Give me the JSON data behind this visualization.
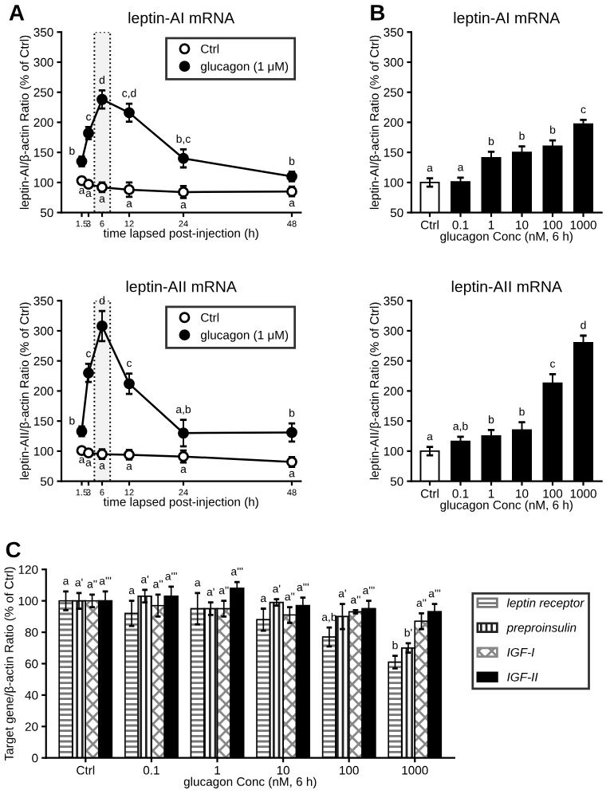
{
  "chart_data": [
    {
      "type": "line",
      "title": "leptin-AI mRNA",
      "annotations": [
        "A"
      ],
      "xlabel": "time lapsed post-injection (h)",
      "ylabel": "leptin-AI/β-actin Ratio (% of Ctrl)",
      "x": [
        1.5,
        3,
        6,
        12,
        24,
        48
      ],
      "xlim": [
        -3,
        50
      ],
      "xticks": [
        1.5,
        3,
        6,
        12,
        24,
        48
      ],
      "ylim": [
        50,
        350
      ],
      "yticks": [
        50,
        100,
        150,
        200,
        250,
        300,
        350
      ],
      "marker": "circle",
      "legend": "top right",
      "grid": false,
      "bands": [
        {
          "axis": "x",
          "from": 4.3,
          "to": 7.8,
          "color": "#f2f2f2"
        }
      ],
      "series": [
        {
          "name": "Ctrl",
          "color": "#ffffff",
          "values": [
            103,
            97,
            92,
            88,
            84,
            85
          ],
          "errors": [
            5,
            4,
            8,
            12,
            10,
            8
          ],
          "value_labels": [
            "a",
            "a",
            "a",
            "a",
            "a",
            "a"
          ]
        },
        {
          "name": "glucagon (1 μM)",
          "color": "#000000",
          "values": [
            135,
            182,
            238,
            216,
            140,
            110
          ],
          "errors": [
            8,
            10,
            15,
            15,
            15,
            8
          ],
          "value_labels": [
            "b",
            "c",
            "d",
            "c,d",
            "b,c",
            "b"
          ]
        }
      ]
    },
    {
      "type": "bar",
      "title": "leptin-AI mRNA",
      "annotations": [
        "B"
      ],
      "xlabel": "glucagon Conc (nM, 6 h)",
      "ylabel": "leptin-AI/β-actin Ratio (% of Ctrl)",
      "categories": [
        "Ctrl",
        "0.1",
        "1",
        "10",
        "100",
        "1000"
      ],
      "ylim": [
        50,
        350
      ],
      "yticks": [
        50,
        100,
        150,
        200,
        250,
        300,
        350
      ],
      "grid": false,
      "values": [
        100,
        101,
        141,
        150,
        160,
        197
      ],
      "errors": [
        7,
        7,
        10,
        10,
        10,
        7
      ],
      "colors": [
        "#ffffff",
        "#000000",
        "#000000",
        "#000000",
        "#000000",
        "#000000"
      ],
      "value_labels": [
        "a",
        "a",
        "b",
        "b",
        "b",
        "c"
      ]
    },
    {
      "type": "line",
      "title": "leptin-AII mRNA",
      "xlabel": "time lapsed post-injection (h)",
      "ylabel": "leptin-AII/β-actin Ratio (% of Ctrl)",
      "x": [
        1.5,
        3,
        6,
        12,
        24,
        48
      ],
      "xlim": [
        -3,
        50
      ],
      "xticks": [
        1.5,
        3,
        6,
        12,
        24,
        48
      ],
      "ylim": [
        50,
        350
      ],
      "yticks": [
        50,
        100,
        150,
        200,
        250,
        300,
        350
      ],
      "marker": "circle",
      "legend": "top right",
      "grid": false,
      "bands": [
        {
          "axis": "x",
          "from": 4.3,
          "to": 7.8,
          "color": "#f2f2f2"
        }
      ],
      "series": [
        {
          "name": "Ctrl",
          "color": "#ffffff",
          "values": [
            101,
            97,
            95,
            94,
            91,
            82
          ],
          "errors": [
            4,
            5,
            8,
            8,
            10,
            8
          ],
          "value_labels": [
            "a",
            "a",
            "a",
            "a",
            "a",
            "a"
          ]
        },
        {
          "name": "glucagon (1 μM)",
          "color": "#000000",
          "values": [
            133,
            230,
            308,
            212,
            130,
            131
          ],
          "errors": [
            8,
            15,
            25,
            17,
            22,
            15
          ],
          "value_labels": [
            "b",
            "c",
            "d",
            "c",
            "a,b",
            "b"
          ]
        }
      ]
    },
    {
      "type": "bar",
      "title": "leptin-AII mRNA",
      "xlabel": "glucagon Conc (nM, 6 h)",
      "ylabel": "leptin-AII/β-actin Ratio (% of Ctrl)",
      "categories": [
        "Ctrl",
        "0.1",
        "1",
        "10",
        "100",
        "1000"
      ],
      "ylim": [
        50,
        350
      ],
      "yticks": [
        50,
        100,
        150,
        200,
        250,
        300,
        350
      ],
      "grid": false,
      "values": [
        100,
        116,
        125,
        135,
        213,
        280
      ],
      "errors": [
        7,
        8,
        10,
        13,
        15,
        12
      ],
      "colors": [
        "#ffffff",
        "#000000",
        "#000000",
        "#000000",
        "#000000",
        "#000000"
      ],
      "value_labels": [
        "a",
        "a,b",
        "b",
        "b",
        "c",
        "d"
      ]
    },
    {
      "type": "bar",
      "annotations": [
        "C"
      ],
      "xlabel": "glucagon Conc (nM, 6 h)",
      "ylabel": "Target gene/β-actin Ratio (% of Ctrl)",
      "categories": [
        "Ctrl",
        "0.1",
        "1",
        "10",
        "100",
        "1000"
      ],
      "ylim": [
        0,
        120
      ],
      "yticks": [
        0,
        20,
        40,
        60,
        80,
        100,
        120
      ],
      "legend": "right",
      "grid": false,
      "series": [
        {
          "name": "leptin receptor",
          "color": "#777777",
          "values": [
            100,
            92,
            95,
            88,
            77,
            61
          ],
          "errors": [
            6,
            8,
            10,
            7,
            6,
            4
          ],
          "value_labels": [
            "a",
            "a",
            "a",
            "a",
            "a,b",
            "b"
          ]
        },
        {
          "name": "preproinsulin",
          "color": "#222222",
          "values": [
            100,
            103,
            95,
            99,
            90,
            70
          ],
          "errors": [
            5,
            4,
            4,
            2,
            8,
            3
          ],
          "value_labels": [
            "a'",
            "a'",
            "a'",
            "a'",
            "a'",
            "b'"
          ]
        },
        {
          "name": "IGF-I",
          "color": "#888888",
          "values": [
            100,
            97,
            95,
            91,
            93,
            87
          ],
          "errors": [
            4,
            7,
            5,
            5,
            1,
            5
          ],
          "value_labels": [
            "a''",
            "a''",
            "a''",
            "a''",
            "a''",
            "a''"
          ]
        },
        {
          "name": "IGF-II",
          "color": "#000000",
          "values": [
            100,
            103,
            108,
            97,
            95,
            93
          ],
          "errors": [
            6,
            6,
            4,
            5,
            5,
            5
          ],
          "value_labels": [
            "a'''",
            "a'''",
            "a'''",
            "a'''",
            "a'''",
            "a'''"
          ]
        }
      ]
    }
  ]
}
